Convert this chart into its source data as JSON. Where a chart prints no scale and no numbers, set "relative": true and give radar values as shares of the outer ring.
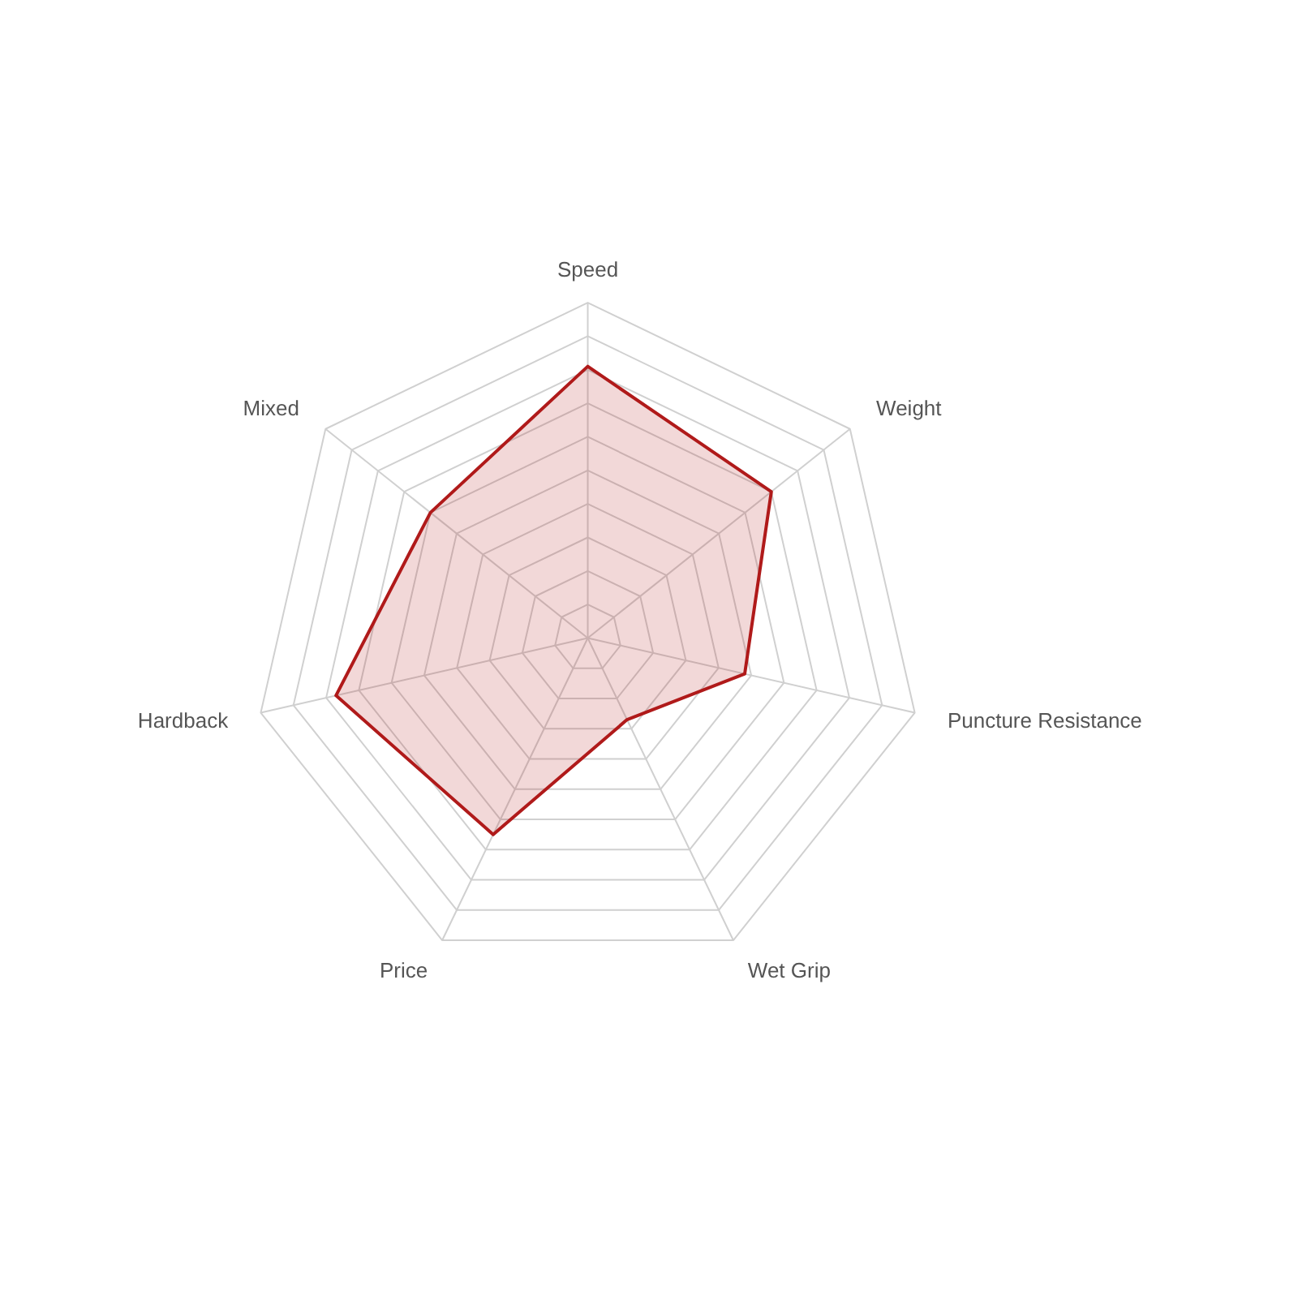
{
  "chart_data": {
    "type": "radar",
    "relative": true,
    "grid": true,
    "categories": [
      "Speed",
      "Weight",
      "Puncture Resistance",
      "Wet Grip",
      "Price",
      "Hardback",
      "Mixed"
    ],
    "series": [
      {
        "color": "#b01a1a",
        "values": [
          0.81,
          0.7,
          0.48,
          0.27,
          0.65,
          0.77,
          0.6
        ]
      }
    ]
  }
}
